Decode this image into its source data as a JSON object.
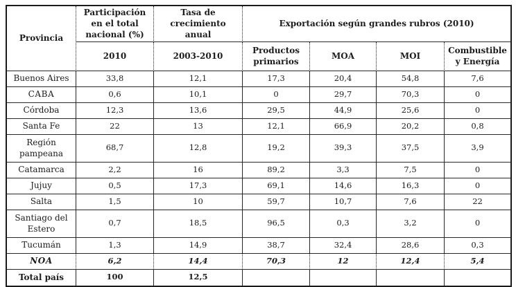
{
  "table": {
    "header": {
      "provincia": "Provincia",
      "participacion": "Participación en el total nacional (%)",
      "participacion_period": "2010",
      "tasa": "Tasa de crecimiento anual",
      "tasa_period": "2003-2010",
      "exportacion": "Exportación según grandes rubros (2010)",
      "productos_primarios": "Productos primarios",
      "moa": "MOA",
      "moi": "MOI",
      "combustible": "Combustible y Energía"
    },
    "rows": [
      {
        "label": "Buenos Aires",
        "values": [
          "33,8",
          "12,1",
          "17,3",
          "20,4",
          "54,8",
          "7,6"
        ],
        "row_class": "",
        "label_class": ""
      },
      {
        "label": "CABA",
        "values": [
          "0,6",
          "10,1",
          "0",
          "29,7",
          "70,3",
          "0"
        ],
        "row_class": "",
        "label_class": "caps"
      },
      {
        "label": "Córdoba",
        "values": [
          "12,3",
          "13,6",
          "29,5",
          "44,9",
          "25,6",
          "0"
        ],
        "row_class": "",
        "label_class": ""
      },
      {
        "label": "Santa Fe",
        "values": [
          "22",
          "13",
          "12,1",
          "66,9",
          "20,2",
          "0,8"
        ],
        "row_class": "",
        "label_class": ""
      },
      {
        "label": "Región pampeana",
        "values": [
          "68,7",
          "12,8",
          "19,2",
          "39,3",
          "37,5",
          "3,9"
        ],
        "row_class": "tall",
        "label_class": ""
      },
      {
        "label": "Catamarca",
        "values": [
          "2,2",
          "16",
          "89,2",
          "3,3",
          "7,5",
          "0"
        ],
        "row_class": "",
        "label_class": ""
      },
      {
        "label": "Jujuy",
        "values": [
          "0,5",
          "17,3",
          "69,1",
          "14,6",
          "16,3",
          "0"
        ],
        "row_class": "",
        "label_class": ""
      },
      {
        "label": "Salta",
        "values": [
          "1,5",
          "10",
          "59,7",
          "10,7",
          "7,6",
          "22"
        ],
        "row_class": "",
        "label_class": ""
      },
      {
        "label": "Santiago del Estero",
        "values": [
          "0,7",
          "18,5",
          "96,5",
          "0,3",
          "3,2",
          "0"
        ],
        "row_class": "tall",
        "label_class": ""
      },
      {
        "label": "Tucumán",
        "values": [
          "1,3",
          "14,9",
          "38,7",
          "32,4",
          "28,6",
          "0,3"
        ],
        "row_class": "",
        "label_class": ""
      },
      {
        "label": "NOA",
        "values": [
          "6,2",
          "14,4",
          "70,3",
          "12",
          "12,4",
          "5,4"
        ],
        "row_class": "noa",
        "label_class": "caps"
      },
      {
        "label": "Total país",
        "values": [
          "100",
          "12,5",
          "",
          "",
          "",
          ""
        ],
        "row_class": "total",
        "label_class": ""
      }
    ]
  },
  "colors": {
    "border": "#1a1a1a",
    "text": "#1c1c1c",
    "background": "#ffffff"
  }
}
